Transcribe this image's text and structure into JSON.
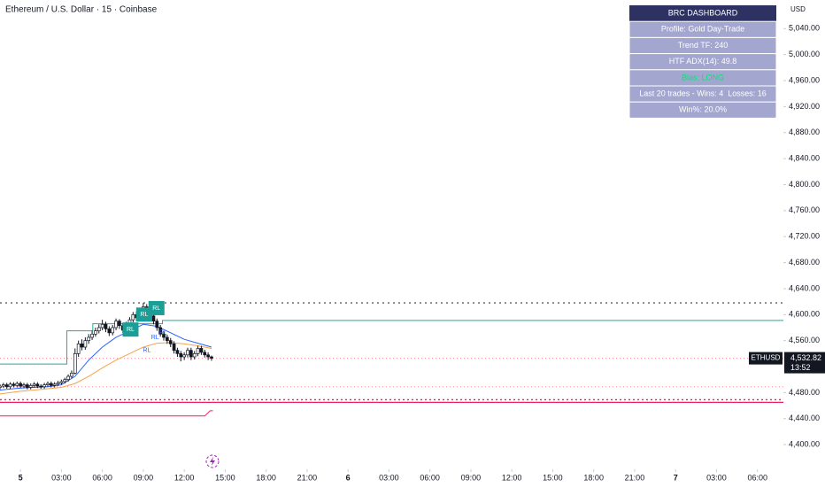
{
  "header": {
    "title": "Ethereum / U.S. Dollar · 15 · Coinbase",
    "currency": "USD"
  },
  "chart_data": {
    "type": "candlestick",
    "xlim": [
      -1.5,
      55.9
    ],
    "ylim": [
      4362,
      5084
    ],
    "xticks": [
      {
        "value": 0,
        "label": "5"
      },
      {
        "value": 3,
        "label": "03:00"
      },
      {
        "value": 6,
        "label": "06:00"
      },
      {
        "value": 9,
        "label": "09:00"
      },
      {
        "value": 12,
        "label": "12:00"
      },
      {
        "value": 15,
        "label": "15:00"
      },
      {
        "value": 18,
        "label": "18:00"
      },
      {
        "value": 21,
        "label": "21:00"
      },
      {
        "value": 24,
        "label": "6"
      },
      {
        "value": 27,
        "label": "03:00"
      },
      {
        "value": 30,
        "label": "06:00"
      },
      {
        "value": 33,
        "label": "09:00"
      },
      {
        "value": 36,
        "label": "12:00"
      },
      {
        "value": 39,
        "label": "15:00"
      },
      {
        "value": 42,
        "label": "18:00"
      },
      {
        "value": 45,
        "label": "21:00"
      },
      {
        "value": 48,
        "label": "7"
      },
      {
        "value": 51,
        "label": "03:00"
      },
      {
        "value": 54,
        "label": "06:00"
      }
    ],
    "yticks": [
      {
        "value": 4400,
        "label": "4,400.00"
      },
      {
        "value": 4440,
        "label": "4,440.00"
      },
      {
        "value": 4480,
        "label": "4,480.00"
      },
      {
        "value": 4520,
        "label": "4,520.00"
      },
      {
        "value": 4560,
        "label": "4,560.00"
      },
      {
        "value": 4600,
        "label": "4,600.00"
      },
      {
        "value": 4640,
        "label": "4,640.00"
      },
      {
        "value": 4680,
        "label": "4,680.00"
      },
      {
        "value": 4720,
        "label": "4,720.00"
      },
      {
        "value": 4760,
        "label": "4,760.00"
      },
      {
        "value": 4800,
        "label": "4,800.00"
      },
      {
        "value": 4840,
        "label": "4,840.00"
      },
      {
        "value": 4880,
        "label": "4,880.00"
      },
      {
        "value": 4920,
        "label": "4,920.00"
      },
      {
        "value": 4960,
        "label": "4,960.00"
      },
      {
        "value": 5000,
        "label": "5,000.00"
      },
      {
        "value": 5040,
        "label": "5,040.00"
      }
    ],
    "up_color": "#ffffff",
    "down_color": "#131722",
    "x": [
      -1.5,
      -1.25,
      -1,
      -0.75,
      -0.5,
      -0.25,
      0,
      0.25,
      0.5,
      0.75,
      1,
      1.25,
      1.5,
      1.75,
      2,
      2.25,
      2.5,
      2.75,
      3,
      3.25,
      3.5,
      3.75,
      4,
      4.25,
      4.5,
      4.75,
      5,
      5.25,
      5.5,
      5.75,
      6,
      6.25,
      6.5,
      6.75,
      7,
      7.25,
      7.5,
      7.75,
      8,
      8.25,
      8.5,
      8.75,
      9,
      9.25,
      9.5,
      9.75,
      10,
      10.25,
      10.5,
      10.75,
      11,
      11.25,
      11.5,
      11.75,
      12,
      12.25,
      12.5,
      12.75,
      13,
      13.25,
      13.5,
      13.75,
      14
    ],
    "open": [
      4488,
      4490,
      4492,
      4489,
      4493,
      4491,
      4494,
      4490,
      4492,
      4488,
      4491,
      4493,
      4490,
      4489,
      4492,
      4494,
      4491,
      4493,
      4495,
      4497,
      4500,
      4505,
      4510,
      4540,
      4555,
      4550,
      4560,
      4565,
      4570,
      4575,
      4580,
      4585,
      4578,
      4572,
      4580,
      4590,
      4583,
      4576,
      4585,
      4592,
      4600,
      4595,
      4605,
      4612,
      4605,
      4598,
      4590,
      4580,
      4570,
      4565,
      4560,
      4555,
      4545,
      4540,
      4535,
      4538,
      4545,
      4535,
      4540,
      4548,
      4542,
      4538,
      4535
    ],
    "high": [
      4493,
      4495,
      4495,
      4496,
      4496,
      4497,
      4497,
      4495,
      4495,
      4494,
      4496,
      4496,
      4493,
      4495,
      4497,
      4497,
      4496,
      4498,
      4500,
      4503,
      4508,
      4514,
      4548,
      4560,
      4562,
      4565,
      4570,
      4575,
      4580,
      4585,
      4592,
      4589,
      4582,
      4584,
      4594,
      4593,
      4587,
      4589,
      4596,
      4604,
      4605,
      4610,
      4618,
      4616,
      4609,
      4602,
      4594,
      4584,
      4574,
      4569,
      4564,
      4559,
      4549,
      4544,
      4542,
      4549,
      4549,
      4544,
      4552,
      4552,
      4546,
      4542,
      4537
    ],
    "low": [
      4485,
      4487,
      4486,
      4486,
      4488,
      4488,
      4487,
      4487,
      4485,
      4485,
      4488,
      4487,
      4486,
      4486,
      4489,
      4488,
      4488,
      4490,
      4492,
      4494,
      4497,
      4502,
      4508,
      4535,
      4545,
      4546,
      4555,
      4561,
      4566,
      4571,
      4576,
      4573,
      4567,
      4568,
      4576,
      4578,
      4572,
      4572,
      4581,
      4588,
      4590,
      4591,
      4600,
      4600,
      4593,
      4585,
      4575,
      4566,
      4560,
      4555,
      4550,
      4540,
      4535,
      4528,
      4530,
      4534,
      4530,
      4531,
      4536,
      4538,
      4534,
      4530,
      4529
    ],
    "close": [
      4490,
      4492,
      4489,
      4493,
      4491,
      4494,
      4490,
      4492,
      4488,
      4491,
      4493,
      4490,
      4489,
      4492,
      4494,
      4491,
      4493,
      4495,
      4497,
      4500,
      4505,
      4510,
      4540,
      4555,
      4550,
      4560,
      4565,
      4570,
      4575,
      4580,
      4585,
      4578,
      4572,
      4580,
      4590,
      4583,
      4576,
      4585,
      4592,
      4600,
      4595,
      4605,
      4612,
      4605,
      4598,
      4590,
      4580,
      4570,
      4565,
      4560,
      4555,
      4545,
      4540,
      4535,
      4538,
      4545,
      4535,
      4540,
      4548,
      4542,
      4538,
      4535,
      4532.82
    ],
    "lines": [
      {
        "color": "#22ab94",
        "x": [
          -1.5,
          3.4,
          3.4,
          5.3,
          5.3,
          10.4,
          10.4,
          55.9
        ],
        "values": [
          4524,
          4524,
          4575,
          4575,
          4586,
          4586,
          4591,
          4591
        ]
      },
      {
        "color": "#2962ff",
        "x": [
          -1.5,
          0,
          1,
          2,
          3,
          4,
          5,
          6,
          7,
          8,
          9,
          10,
          11,
          12,
          13,
          14
        ],
        "values": [
          4484,
          4487,
          4488,
          4489,
          4492,
          4505,
          4530,
          4550,
          4565,
          4575,
          4585,
          4582,
          4572,
          4562,
          4556,
          4550
        ]
      },
      {
        "color": "#f7a24a",
        "x": [
          -1.5,
          0,
          1,
          2,
          3,
          4,
          5,
          6,
          7,
          8,
          9,
          10,
          11,
          12,
          13,
          14
        ],
        "values": [
          4478,
          4482,
          4484,
          4486,
          4488,
          4494,
          4505,
          4518,
          4530,
          4540,
          4550,
          4556,
          4557,
          4555,
          4552,
          4548
        ]
      },
      {
        "color": "#e91e63",
        "x": [
          -1.5,
          13.5,
          13.9,
          14.1
        ],
        "values": [
          4444,
          4444,
          4452,
          4452
        ]
      }
    ],
    "hlines": [
      {
        "value": 4618,
        "color": "#555b66",
        "dash": "2 4"
      },
      {
        "value": 4469,
        "color": "#e91e63",
        "dash": "2 3"
      },
      {
        "value": 4465,
        "color": "#e91e63",
        "dash": ""
      },
      {
        "value": 4532.82,
        "color": "#f5a3aa",
        "dash": "1 3"
      },
      {
        "value": 4489,
        "color": "#f5a3aa",
        "dash": "1 3"
      }
    ],
    "signals": [
      {
        "x": 8.0,
        "y": 4577,
        "label": "RL",
        "kind": "box"
      },
      {
        "x": 9.0,
        "y": 4600,
        "label": "RL",
        "kind": "box"
      },
      {
        "x": 9.9,
        "y": 4610,
        "label": "RL",
        "kind": "box"
      },
      {
        "x": 9.2,
        "y": 4545,
        "label": "RL",
        "kind": "text"
      },
      {
        "x": 9.8,
        "y": 4565,
        "label": "RL",
        "kind": "text"
      },
      {
        "x": 10.4,
        "y": 4572,
        "label": "RL",
        "kind": "text"
      }
    ],
    "price_tag": {
      "symbol": "ETHUSD",
      "value": 4532.82,
      "label": "4,532.82",
      "countdown": "13:52"
    }
  },
  "dashboard": {
    "title": "BRC DASHBOARD",
    "rows": [
      {
        "text": "Profile: Gold Day-Trade",
        "color": "#ffffff"
      },
      {
        "text": "Trend TF: 240",
        "color": "#ffffff"
      },
      {
        "text": "HTF ADX(14): 49.8",
        "color": "#ffffff"
      },
      {
        "text": "Bias: LONG",
        "color": "#00e676"
      },
      {
        "text": "Last 20 trades - Wins: 4  Losses: 16",
        "color": "#ffffff"
      },
      {
        "text": "Win%: 20.0%",
        "color": "#ffffff"
      }
    ]
  }
}
